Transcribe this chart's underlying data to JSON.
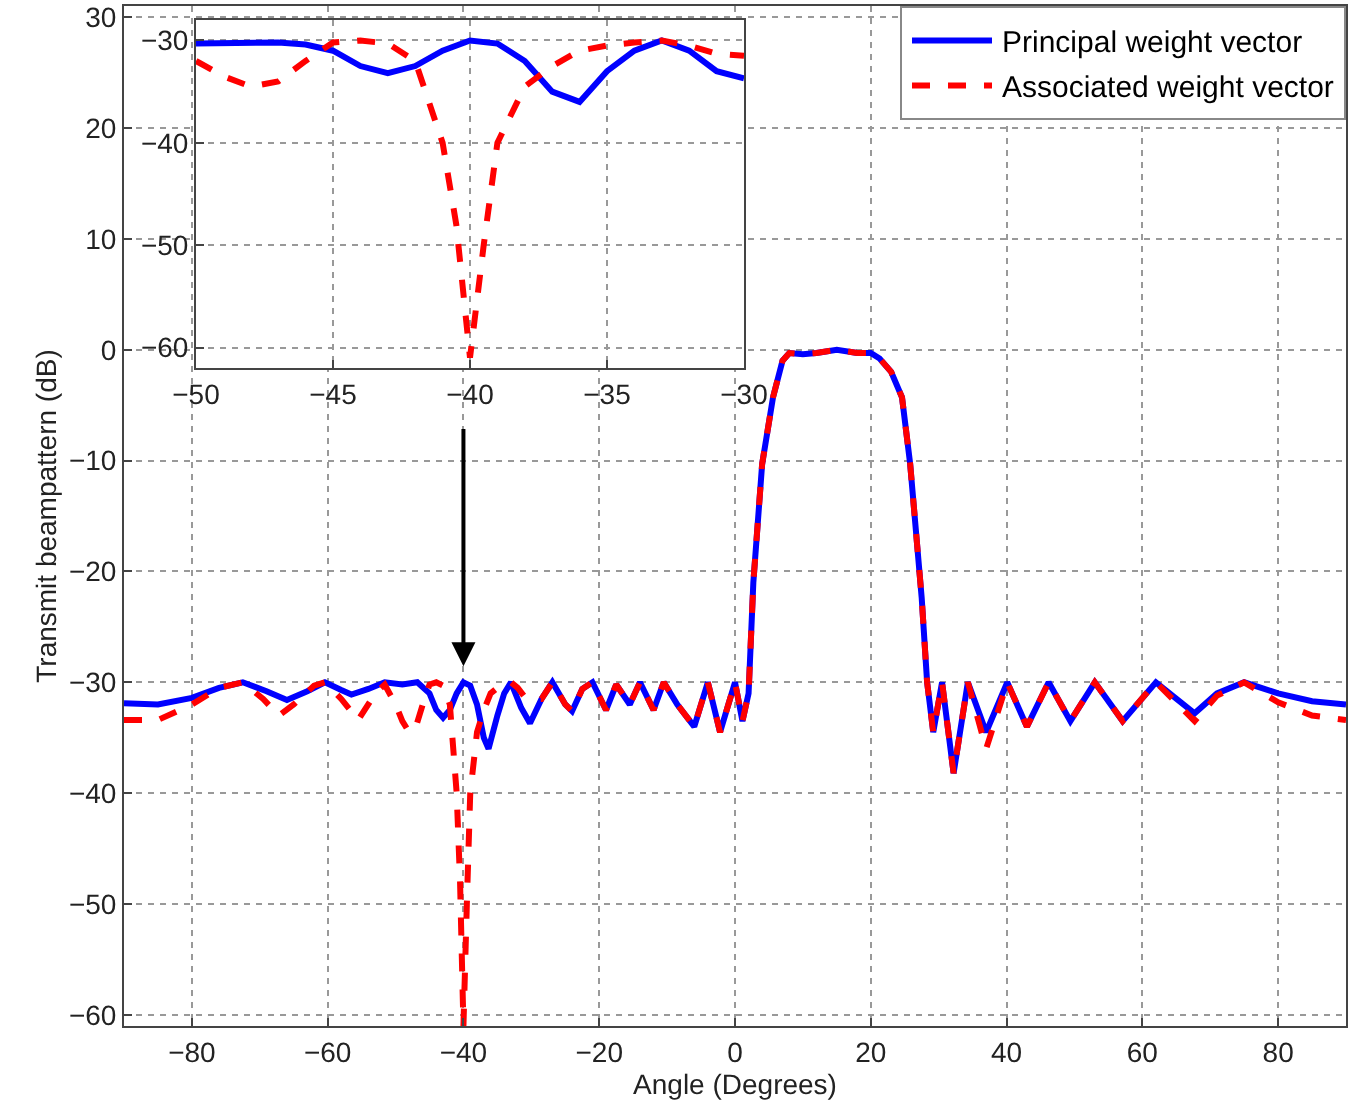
{
  "chart_data": [
    {
      "type": "line",
      "xlabel": "Angle (Degrees)",
      "ylabel": "Transmit beampattern (dB)",
      "xlim": [
        -90,
        90
      ],
      "ylim": [
        -61,
        31
      ],
      "xticks": [
        -80,
        -60,
        -40,
        -20,
        0,
        20,
        40,
        60,
        80
      ],
      "yticks": [
        -60,
        -50,
        -40,
        -30,
        -20,
        -10,
        0,
        10,
        20,
        30
      ],
      "grid": true,
      "legend": "top right",
      "marker": "none",
      "series": [
        {
          "name": "Principal weight vector",
          "color": "#0000ff",
          "line_style": "solid",
          "x": [
            -90,
            -85,
            -80,
            -76,
            -72.5,
            -69,
            -66,
            -63,
            -60.4,
            -58,
            -56.5,
            -54,
            -51.6,
            -49,
            -46.8,
            -45,
            -44,
            -43,
            -42,
            -41,
            -40,
            -39,
            -38,
            -37,
            -36.3,
            -35,
            -34,
            -33,
            -31.5,
            -30.2,
            -28.5,
            -26.9,
            -25,
            -24,
            -22.5,
            -21,
            -19,
            -17.5,
            -15.5,
            -14,
            -12,
            -10.5,
            -8.5,
            -6,
            -4,
            -2.2,
            0,
            1.1,
            2,
            2.7,
            4,
            5.6,
            7,
            8,
            10,
            12,
            15,
            18,
            20,
            21.3,
            23,
            24.6,
            25.8,
            27.5,
            28.3,
            29.2,
            30.5,
            32.2,
            34.3,
            37,
            40.1,
            43,
            46.2,
            49.4,
            53,
            57.1,
            62,
            67.7,
            71,
            75,
            80,
            85,
            90
          ],
          "values": [
            -31.9,
            -32,
            -31.4,
            -30.5,
            -30,
            -30.8,
            -31.6,
            -30.8,
            -30,
            -30.7,
            -31.1,
            -30.6,
            -30,
            -30.2,
            -30,
            -31,
            -32.5,
            -33.2,
            -32.5,
            -31,
            -30,
            -30.3,
            -32,
            -35,
            -36,
            -33,
            -31,
            -30,
            -32.3,
            -33.7,
            -31.5,
            -30,
            -32,
            -32.6,
            -30.6,
            -30,
            -32.5,
            -30.2,
            -32,
            -30,
            -32.5,
            -30,
            -32,
            -34,
            -30,
            -34.5,
            -30,
            -33.5,
            -31,
            -21,
            -10.3,
            -4.3,
            -1,
            -0.3,
            -0.4,
            -0.3,
            0,
            -0.3,
            -0.3,
            -0.8,
            -2,
            -4.3,
            -10.3,
            -22.4,
            -30,
            -34.5,
            -30,
            -38.2,
            -30,
            -34.5,
            -30,
            -34,
            -30,
            -33.5,
            -30,
            -33.5,
            -30,
            -32.8,
            -31,
            -30,
            -31,
            -31.7,
            -32
          ]
        },
        {
          "name": "Associated weight vector",
          "color": "#ff0000",
          "line_style": "dashed",
          "x": [
            -90,
            -85,
            -80,
            -76,
            -72.5,
            -69.5,
            -67.2,
            -65,
            -62,
            -60.4,
            -58,
            -55.5,
            -53,
            -51.6,
            -50,
            -49,
            -48,
            -47,
            -46,
            -45,
            -44,
            -43,
            -42,
            -41,
            -40.5,
            -40,
            -39.5,
            -39,
            -38,
            -37,
            -36,
            -35,
            -34,
            -33,
            -32,
            -31,
            -30,
            -28.5,
            -26.9,
            -25,
            -24,
            -22.5,
            -21,
            -19,
            -17.5,
            -15.5,
            -14,
            -12,
            -10.5,
            -8.5,
            -6,
            -4,
            -2.2,
            0,
            1.1,
            2,
            2.7,
            4,
            5.6,
            7,
            8,
            10,
            12,
            15,
            18,
            20,
            21.3,
            23,
            24.6,
            25.8,
            27.5,
            28.3,
            29.2,
            30.5,
            32.2,
            34.3,
            37,
            40.1,
            43,
            46.2,
            49.4,
            53,
            57.1,
            62,
            67.7,
            71,
            75,
            80,
            85,
            90
          ],
          "values": [
            -33.4,
            -33.4,
            -32,
            -30.5,
            -30,
            -31.5,
            -33,
            -32,
            -30.3,
            -30,
            -31.5,
            -33.4,
            -31,
            -30.2,
            -32,
            -33.5,
            -34.5,
            -34,
            -32,
            -30.2,
            -30,
            -30.3,
            -32,
            -40,
            -48,
            -61,
            -50,
            -40,
            -34.5,
            -32.5,
            -31,
            -30.5,
            -30.2,
            -30,
            -30.5,
            -31.3,
            -31.5,
            -31.5,
            -30,
            -32,
            -32.6,
            -30.6,
            -30,
            -32.5,
            -30.2,
            -32,
            -30,
            -32.5,
            -30,
            -32,
            -34,
            -30,
            -34.5,
            -30,
            -33.5,
            -31,
            -21,
            -10.3,
            -4.3,
            -1,
            -0.3,
            -0.4,
            -0.3,
            0,
            -0.3,
            -0.3,
            -0.8,
            -2,
            -4.3,
            -10.3,
            -22.4,
            -30,
            -34.5,
            -30,
            -38.2,
            -30,
            -36,
            -30,
            -34,
            -30,
            -33.5,
            -30,
            -33.5,
            -30,
            -33.5,
            -31.2,
            -30,
            -31.8,
            -33,
            -33.4
          ]
        }
      ]
    },
    {
      "type": "line",
      "xlim": [
        -50,
        -30
      ],
      "ylim": [
        -62,
        -28
      ],
      "xticks": [
        -50,
        -45,
        -40,
        -35,
        -30
      ],
      "yticks": [
        -60,
        -50,
        -40,
        -30
      ],
      "grid": true,
      "marker": "none",
      "series": [
        {
          "color": "#0000ff",
          "line_style": "solid",
          "x": [
            -50,
            -47,
            -46,
            -45,
            -44,
            -43,
            -42,
            -41,
            -40,
            -39,
            -38,
            -37,
            -36,
            -35,
            -34,
            -33,
            -32,
            -31,
            -30
          ],
          "values": [
            -30.3,
            -30.2,
            -30.4,
            -31,
            -32.5,
            -33.2,
            -32.5,
            -31,
            -30,
            -30.3,
            -32,
            -35,
            -36,
            -33,
            -31,
            -30,
            -31,
            -33,
            -33.7
          ]
        },
        {
          "color": "#ff0000",
          "line_style": "dashed",
          "x": [
            -50,
            -49,
            -48,
            -47,
            -46,
            -45,
            -44,
            -43,
            -42,
            -41,
            -40.5,
            -40,
            -39.5,
            -39,
            -38,
            -37,
            -36,
            -35,
            -34,
            -33,
            -32,
            -31,
            -30
          ],
          "values": [
            -32,
            -33.5,
            -34.5,
            -34,
            -32,
            -30.2,
            -30,
            -30.3,
            -32,
            -40,
            -48,
            -61,
            -50,
            -40,
            -34.5,
            -32.5,
            -31,
            -30.5,
            -30.2,
            -30,
            -30.5,
            -31.3,
            -31.5
          ]
        }
      ]
    }
  ]
}
